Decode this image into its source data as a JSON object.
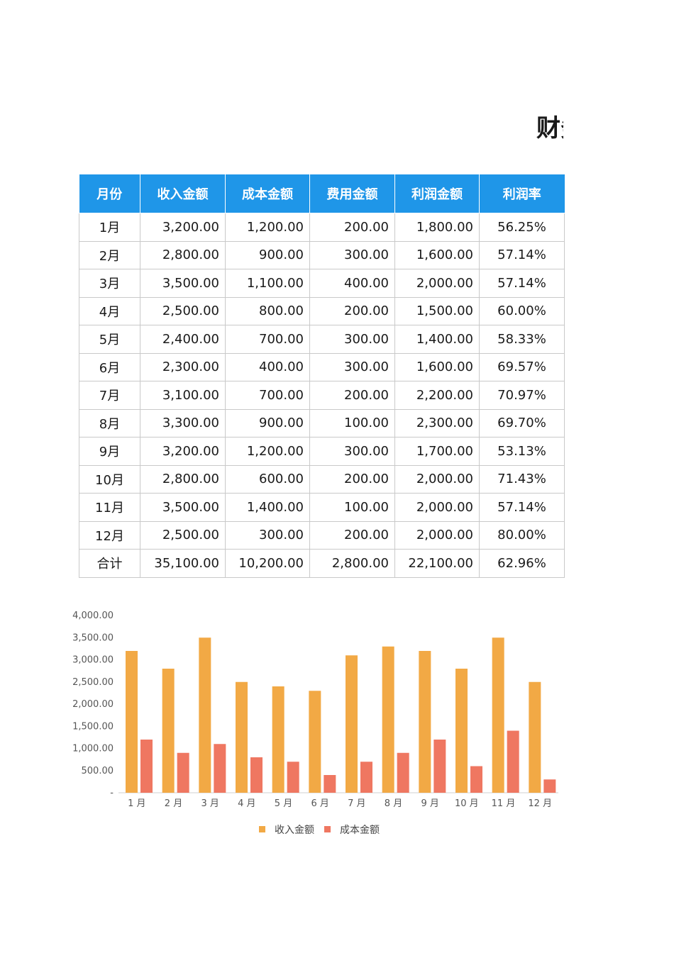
{
  "title": "财务",
  "table": {
    "headers": [
      "月份",
      "收入金额",
      "成本金额",
      "费用金额",
      "利润金额",
      "利润率"
    ],
    "rows": [
      [
        "1月",
        "3,200.00",
        "1,200.00",
        "200.00",
        "1,800.00",
        "56.25%"
      ],
      [
        "2月",
        "2,800.00",
        "900.00",
        "300.00",
        "1,600.00",
        "57.14%"
      ],
      [
        "3月",
        "3,500.00",
        "1,100.00",
        "400.00",
        "2,000.00",
        "57.14%"
      ],
      [
        "4月",
        "2,500.00",
        "800.00",
        "200.00",
        "1,500.00",
        "60.00%"
      ],
      [
        "5月",
        "2,400.00",
        "700.00",
        "300.00",
        "1,400.00",
        "58.33%"
      ],
      [
        "6月",
        "2,300.00",
        "400.00",
        "300.00",
        "1,600.00",
        "69.57%"
      ],
      [
        "7月",
        "3,100.00",
        "700.00",
        "200.00",
        "2,200.00",
        "70.97%"
      ],
      [
        "8月",
        "3,300.00",
        "900.00",
        "100.00",
        "2,300.00",
        "69.70%"
      ],
      [
        "9月",
        "3,200.00",
        "1,200.00",
        "300.00",
        "1,700.00",
        "53.13%"
      ],
      [
        "10月",
        "2,800.00",
        "600.00",
        "200.00",
        "2,000.00",
        "71.43%"
      ],
      [
        "11月",
        "3,500.00",
        "1,400.00",
        "100.00",
        "2,000.00",
        "57.14%"
      ],
      [
        "12月",
        "2,500.00",
        "300.00",
        "200.00",
        "2,000.00",
        "80.00%"
      ],
      [
        "合计",
        "35,100.00",
        "10,200.00",
        "2,800.00",
        "22,100.00",
        "62.96%"
      ]
    ]
  },
  "colors": {
    "header_bg": "#1f96e8",
    "income": "#f2a945",
    "cost": "#ef7761"
  },
  "chart_data": {
    "type": "bar",
    "categories": [
      "1 月",
      "2 月",
      "3 月",
      "4 月",
      "5 月",
      "6 月",
      "7 月",
      "8 月",
      "9 月",
      "10 月",
      "11 月",
      "12 月"
    ],
    "series": [
      {
        "name": "收入金额",
        "values": [
          3200,
          2800,
          3500,
          2500,
          2400,
          2300,
          3100,
          3300,
          3200,
          2800,
          3500,
          2500
        ]
      },
      {
        "name": "成本金额",
        "values": [
          1200,
          900,
          1100,
          800,
          700,
          400,
          700,
          900,
          1200,
          600,
          1400,
          300
        ]
      }
    ],
    "ylim": [
      0,
      4000
    ],
    "yticks": [
      0,
      500,
      1000,
      1500,
      2000,
      2500,
      3000,
      3500,
      4000
    ],
    "ytick_labels": [
      "-",
      "500.00",
      "1,000.00",
      "1,500.00",
      "2,000.00",
      "2,500.00",
      "3,000.00",
      "3,500.00",
      "4,000.00"
    ],
    "grid": false,
    "legend_position": "bottom"
  }
}
